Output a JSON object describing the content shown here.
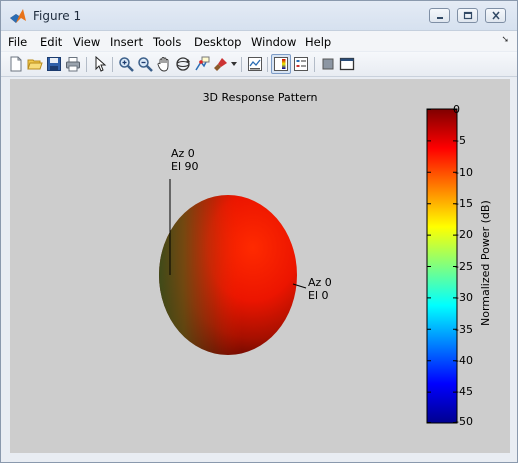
{
  "window": {
    "title": "Figure 1",
    "icon": "matlab-logo-icon",
    "controls": [
      "minimize-icon",
      "maximize-icon",
      "close-icon"
    ]
  },
  "menubar": {
    "items": [
      "File",
      "Edit",
      "View",
      "Insert",
      "Tools",
      "Desktop",
      "Window",
      "Help"
    ],
    "dock_arrow": "➘"
  },
  "toolbar": {
    "icons": [
      "new-figure-icon",
      "open-file-icon",
      "save-icon",
      "print-icon",
      "arrow-select-icon",
      "zoom-in-icon",
      "zoom-out-icon",
      "pan-hand-icon",
      "rotate-3d-icon",
      "data-cursor-icon",
      "brush-icon",
      "brush-dropdown-icon",
      "link-plot-icon",
      "colorbar-icon",
      "legend-icon",
      "hide-plot-tools-icon",
      "show-plot-tools-icon"
    ]
  },
  "figure": {
    "title": "3D Response Pattern",
    "annotations": [
      {
        "line1": "Az 0",
        "line2": "El 90"
      },
      {
        "line1": "Az 0",
        "line2": "El 0"
      }
    ],
    "colorbar": {
      "label": "Normalized Power (dB)",
      "ticks": [
        "0",
        "-5",
        "-10",
        "-15",
        "-20",
        "-25",
        "-30",
        "-35",
        "-40",
        "-45",
        "-50"
      ],
      "range": [
        -50,
        0
      ],
      "colormap": "jet"
    },
    "colors": {
      "background": "#cdcdcd",
      "surface": "#ff1a00"
    }
  }
}
